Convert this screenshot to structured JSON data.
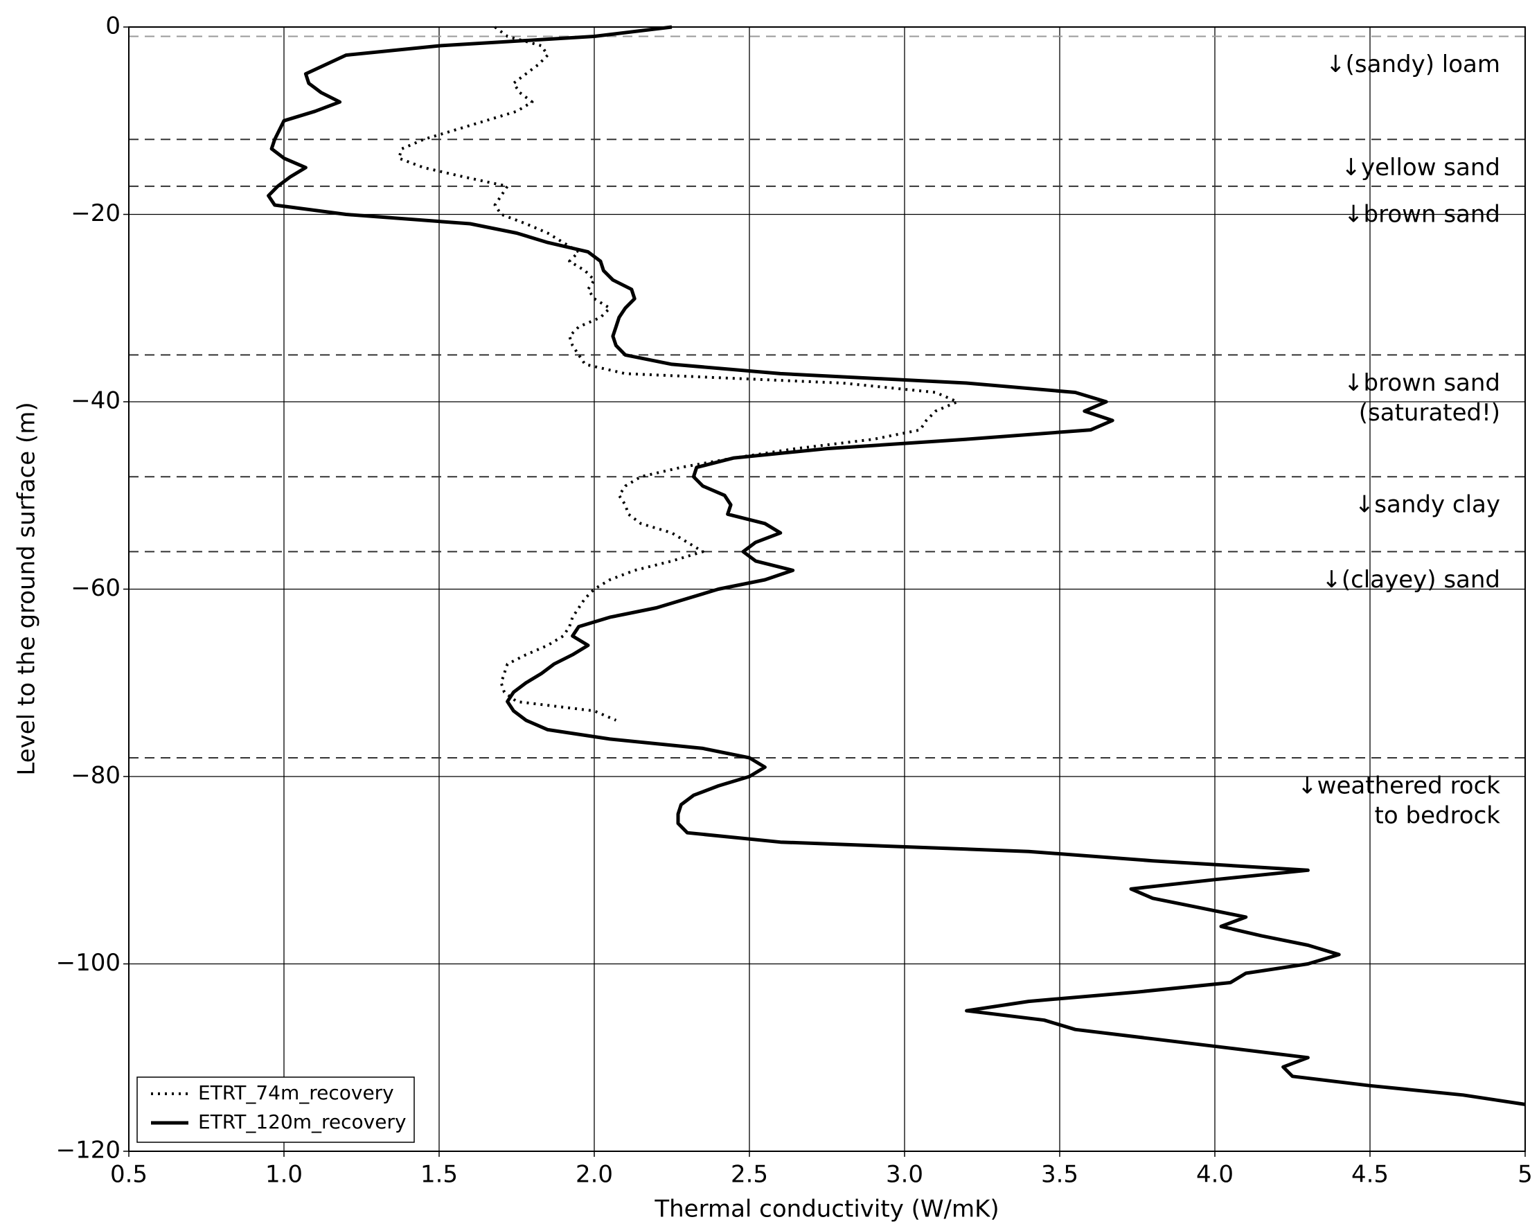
{
  "chart_data": {
    "type": "line",
    "xlabel": "Thermal conductivity (W/mK)",
    "ylabel": "Level to the ground surface (m)",
    "xlim": [
      0.5,
      5
    ],
    "ylim": [
      -120,
      0
    ],
    "xticks": [
      0.5,
      {
        "value": 1.0,
        "label": "1.0"
      },
      1.5,
      {
        "value": 2.0,
        "label": "2.0"
      },
      2.5,
      {
        "value": 3.0,
        "label": "3.0"
      },
      3.5,
      {
        "value": 4.0,
        "label": "4.0"
      },
      4.5,
      5
    ],
    "yticks": [
      0,
      {
        "value": -20,
        "label": "−20"
      },
      {
        "value": -40,
        "label": "−40"
      },
      {
        "value": -60,
        "label": "−60"
      },
      {
        "value": -80,
        "label": "−80"
      },
      {
        "value": -100,
        "label": "−100"
      },
      {
        "value": -120,
        "label": "−120"
      }
    ],
    "grid": true,
    "legend": "lower left",
    "boundaries": [
      -1,
      -12,
      -17,
      -35,
      -48,
      -56,
      -78
    ],
    "annotations": [
      [
        "↓(sandy) loam"
      ],
      [
        "↓yellow sand"
      ],
      [
        "↓brown sand"
      ],
      [
        "↓brown sand",
        "(saturated!)"
      ],
      [
        "↓sandy clay"
      ],
      [
        "↓(clayey) sand"
      ],
      [
        "↓weathered rock",
        "to bedrock"
      ]
    ],
    "series": [
      {
        "name": "ETRT_74m_recovery",
        "color": "#000000",
        "style": "dotted",
        "x": [
          1.68,
          1.72,
          1.83,
          1.85,
          1.82,
          1.78,
          1.74,
          1.76,
          1.8,
          1.75,
          1.65,
          1.55,
          1.45,
          1.38,
          1.37,
          1.45,
          1.58,
          1.72,
          1.7,
          1.68,
          1.7,
          1.78,
          1.85,
          1.9,
          1.95,
          1.92,
          1.97,
          2.0,
          1.98,
          2.0,
          2.05,
          2.02,
          1.95,
          1.92,
          1.93,
          1.95,
          1.97,
          2.1,
          2.8,
          3.1,
          3.17,
          3.1,
          3.07,
          3.05,
          2.9,
          2.65,
          2.45,
          2.28,
          2.15,
          2.1,
          2.08,
          2.1,
          2.11,
          2.15,
          2.25,
          2.3,
          2.35,
          2.25,
          2.13,
          2.05,
          2.0,
          1.97,
          1.95,
          1.93,
          1.92,
          1.9,
          1.85,
          1.78,
          1.72,
          1.71,
          1.7,
          1.71,
          1.75,
          2.0,
          2.07
        ],
        "y": [
          0,
          -1,
          -2,
          -3,
          -4,
          -5,
          -6,
          -7,
          -8,
          -9,
          -10,
          -11,
          -12,
          -13,
          -14,
          -15,
          -16,
          -17,
          -18,
          -19,
          -20,
          -21,
          -22,
          -23,
          -24,
          -25,
          -26,
          -27,
          -28,
          -29,
          -30,
          -31,
          -32,
          -33,
          -34,
          -35,
          -36,
          -37,
          -38,
          -39,
          -40,
          -41,
          -42,
          -43,
          -44,
          -45,
          -46,
          -47,
          -48,
          -49,
          -50,
          -51,
          -52,
          -53,
          -54,
          -55,
          -56,
          -57,
          -58,
          -59,
          -60,
          -61,
          -62,
          -63,
          -64,
          -65,
          -66,
          -67,
          -68,
          -69,
          -70,
          -71,
          -72,
          -73,
          -74
        ]
      },
      {
        "name": "ETRT_120m_recovery",
        "color": "#000000",
        "style": "solid",
        "x": [
          2.25,
          2.0,
          1.5,
          1.2,
          1.07,
          1.08,
          1.12,
          1.18,
          1.1,
          1.0,
          0.97,
          0.96,
          1.0,
          1.07,
          1.02,
          0.98,
          0.95,
          0.97,
          1.2,
          1.6,
          1.75,
          1.85,
          1.98,
          2.02,
          2.03,
          2.06,
          2.12,
          2.13,
          2.1,
          2.08,
          2.07,
          2.06,
          2.07,
          2.1,
          2.25,
          2.6,
          3.2,
          3.55,
          3.65,
          3.58,
          3.67,
          3.6,
          3.2,
          2.75,
          2.45,
          2.33,
          2.32,
          2.35,
          2.42,
          2.44,
          2.43,
          2.55,
          2.6,
          2.52,
          2.48,
          2.52,
          2.64,
          2.55,
          2.4,
          2.3,
          2.2,
          2.05,
          1.95,
          1.93,
          1.98,
          1.93,
          1.87,
          1.83,
          1.78,
          1.74,
          1.72,
          1.74,
          1.78,
          1.85,
          2.05,
          2.35,
          2.5,
          2.55,
          2.5,
          2.4,
          2.32,
          2.28,
          2.27,
          2.27,
          2.3,
          2.6,
          3.4,
          3.8,
          4.3,
          4.0,
          3.73,
          3.8,
          3.95,
          4.1,
          4.02,
          4.15,
          4.3,
          4.4,
          4.3,
          4.1,
          4.05,
          3.75,
          3.4,
          3.2,
          3.45,
          3.55,
          3.8,
          4.05,
          4.3,
          4.22,
          4.25,
          4.5,
          4.8,
          5.0
        ],
        "y": [
          0,
          -1,
          -2,
          -3,
          -5,
          -6,
          -7,
          -8,
          -9,
          -10,
          -12,
          -13,
          -14,
          -15,
          -16,
          -17,
          -18,
          -19,
          -20,
          -21,
          -22,
          -23,
          -24,
          -25,
          -26,
          -27,
          -28,
          -29,
          -30,
          -31,
          -32,
          -33,
          -34,
          -35,
          -36,
          -37,
          -38,
          -39,
          -40,
          -41,
          -42,
          -43,
          -44,
          -45,
          -46,
          -47,
          -48,
          -49,
          -50,
          -51,
          -52,
          -53,
          -54,
          -55,
          -56,
          -57,
          -58,
          -59,
          -60,
          -61,
          -62,
          -63,
          -64,
          -65,
          -66,
          -67,
          -68,
          -69,
          -70,
          -71,
          -72,
          -73,
          -74,
          -75,
          -76,
          -77,
          -78,
          -79,
          -80,
          -81,
          -82,
          -83,
          -84,
          -85,
          -86,
          -87,
          -88,
          -89,
          -90,
          -91,
          -92,
          -93,
          -94,
          -95,
          -96,
          -97,
          -98,
          -99,
          -100,
          -101,
          -102,
          -103,
          -104,
          -105,
          -106,
          -107,
          -108,
          -109,
          -110,
          -111,
          -112,
          -113,
          -114,
          -115
        ]
      }
    ]
  }
}
